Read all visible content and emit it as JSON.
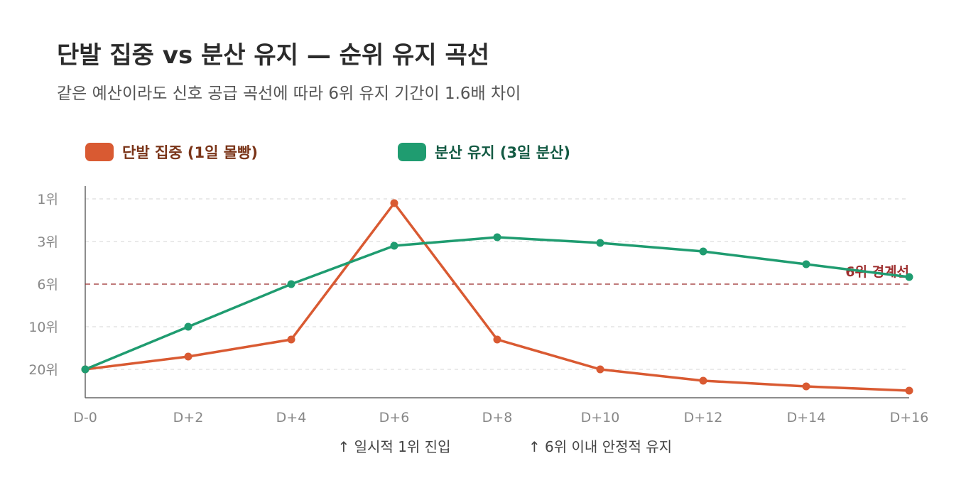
{
  "title": "단발 집중 vs 분산 유지 — 순위 유지 곡선",
  "subtitle": "같은 예산이라도 신호 공급 곡선에 따라 6위 유지 기간이 1.6배 차이",
  "chart_data": {
    "type": "line",
    "title": "단발 집중 vs 분산 유지 — 순위 유지 곡선",
    "subtitle": "같은 예산이라도 신호 공급 곡선에 따라 6위 유지 기간이 1.6배 차이",
    "x": [
      0,
      2,
      4,
      6,
      8,
      10,
      12,
      14,
      16
    ],
    "x_tick_labels": [
      "D-0",
      "D+2",
      "D+4",
      "D+6",
      "D+8",
      "D+10",
      "D+12",
      "D+14",
      "D+16"
    ],
    "y_ticks": [
      1,
      3,
      6,
      10,
      20
    ],
    "y_tick_labels": [
      "1위",
      "3위",
      "6위",
      "10위",
      "20위"
    ],
    "y_scale": "rank (inverted, 1위 at top)",
    "grid": "horizontal dashed",
    "legend_position": "top-left",
    "series": [
      {
        "name": "단발 집중 (1일 몰빵)",
        "color": "#d95a32",
        "values": [
          20,
          17,
          13,
          1.2,
          13,
          20,
          28,
          32,
          35
        ]
      },
      {
        "name": "분산 유지 (3일 분산)",
        "color": "#1f9c70",
        "values": [
          20,
          10,
          6,
          3.3,
          2.8,
          3.1,
          3.7,
          4.6,
          5.5
        ]
      }
    ],
    "reference_line": {
      "label": "6위 경계선",
      "y": 6,
      "color": "#9e2f2f"
    },
    "annotations": [
      {
        "text": "↑ 일시적 1위 진입",
        "x": 6
      },
      {
        "text": "↑ 6위 이내 안정적 유지",
        "x": 10
      }
    ]
  }
}
